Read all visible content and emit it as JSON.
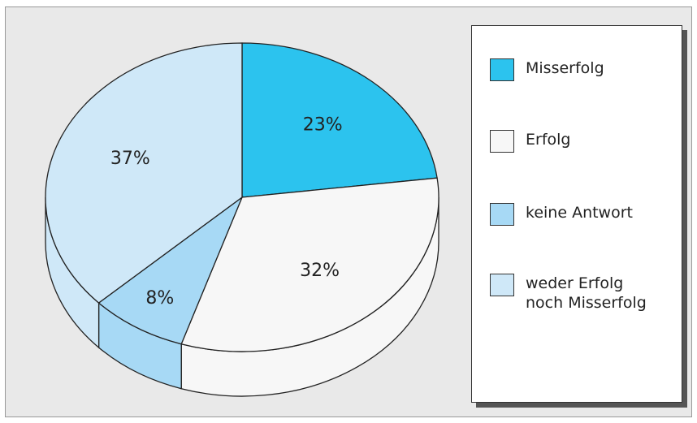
{
  "chart_data": {
    "type": "pie",
    "categories": [
      "Misserfolg",
      "Erfolg",
      "keine Antwort",
      "weder Erfolg noch Misserfolg"
    ],
    "values": [
      23,
      32,
      8,
      37
    ],
    "value_labels": [
      "23%",
      "32%",
      "8%",
      "37%"
    ],
    "colors": [
      "#2cc3ee",
      "#f7f7f7",
      "#a7d9f5",
      "#cfe8f8"
    ]
  }
}
